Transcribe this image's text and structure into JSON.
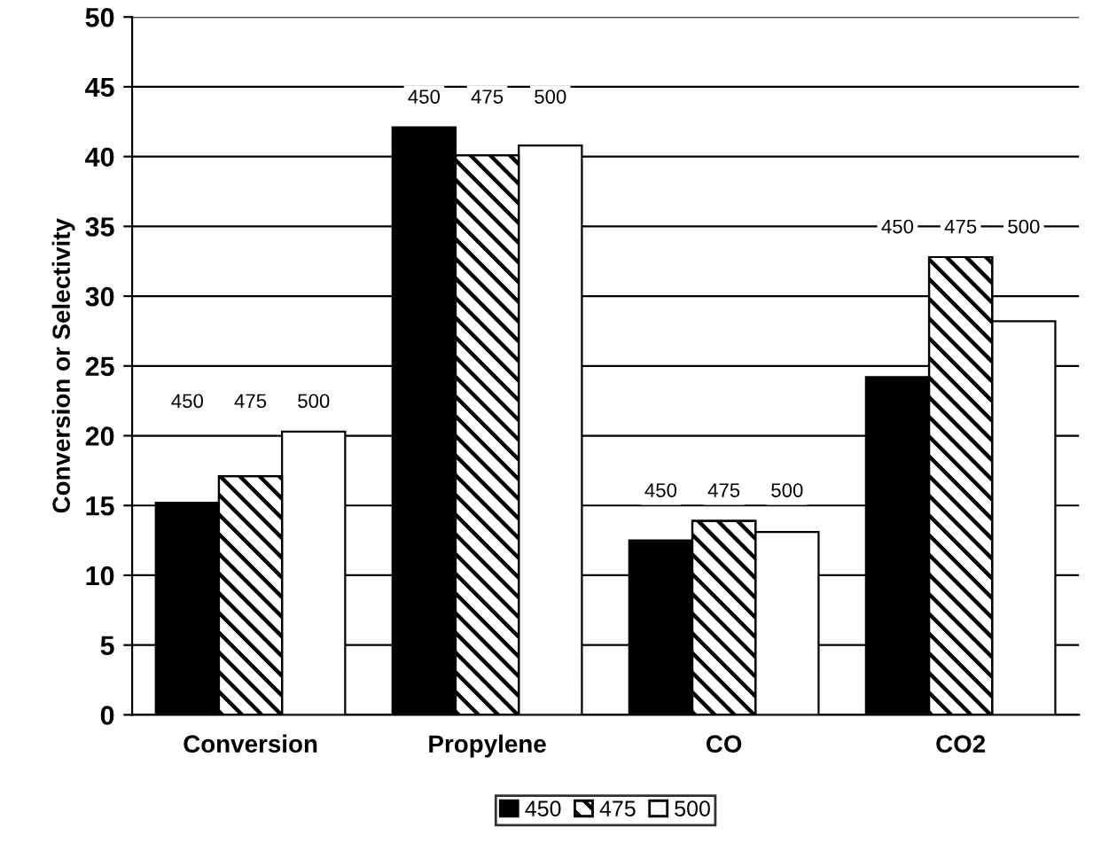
{
  "chart_data": {
    "type": "bar",
    "ylabel": "Conversion or Selectivity",
    "categories": [
      "Conversion",
      "Propylene",
      "CO",
      "CO2"
    ],
    "series": [
      {
        "name": "450",
        "color": "#000000",
        "values": [
          15.2,
          42.1,
          12.5,
          24.2
        ]
      },
      {
        "name": "475",
        "color": "#000000",
        "values": [
          17.1,
          40.1,
          13.9,
          32.8
        ]
      },
      {
        "name": "500",
        "color": "#ffffff",
        "values": [
          20.3,
          40.8,
          13.1,
          28.2
        ]
      }
    ],
    "annotations": [
      "450",
      "475",
      "500",
      "450",
      "475",
      "500",
      "450",
      "475",
      "500",
      "450",
      "475",
      "500"
    ],
    "ylim": [
      0,
      50
    ],
    "yticks": [
      0,
      5,
      10,
      15,
      20,
      25,
      30,
      35,
      40,
      45,
      50
    ],
    "grid": "y",
    "legend": "bottom"
  }
}
